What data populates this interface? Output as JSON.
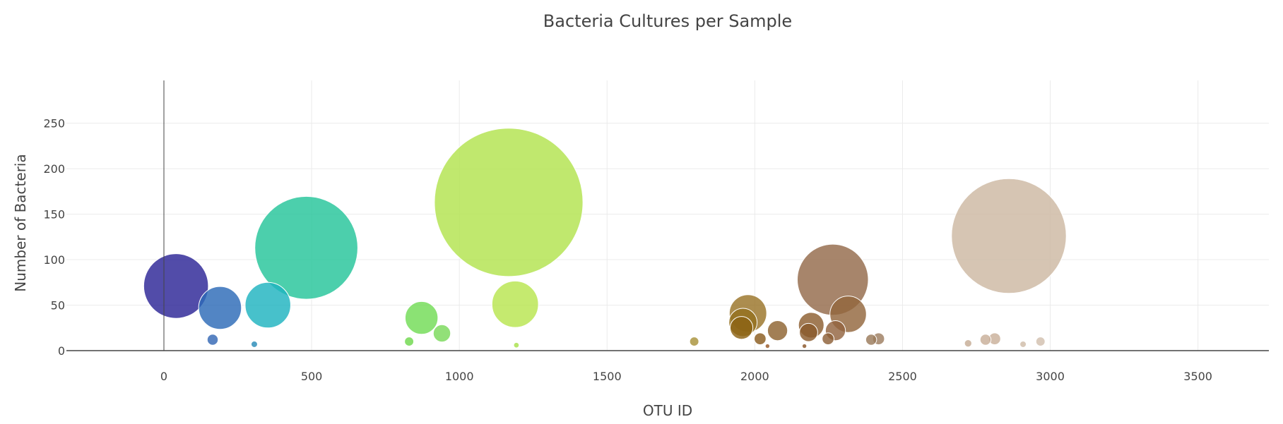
{
  "chart_data": {
    "type": "scatter",
    "title": "Bacteria Cultures per Sample",
    "xlabel": "OTU ID",
    "ylabel": "Number of Bacteria",
    "xlim": [
      -330,
      3740
    ],
    "ylim": [
      0,
      297
    ],
    "x_ticks": [
      0,
      500,
      1000,
      1500,
      2000,
      2500,
      3000,
      3500
    ],
    "y_ticks": [
      0,
      50,
      100,
      150,
      200,
      250
    ],
    "grid": true,
    "legend": "none",
    "series": [
      {
        "marker": "bubble-sized-by-value",
        "points": [
          {
            "x": 41,
            "y": 71,
            "color": "#2c2496"
          },
          {
            "x": 190,
            "y": 47,
            "color": "#2c6ab7"
          },
          {
            "x": 165,
            "y": 12,
            "color": "#3568b4"
          },
          {
            "x": 306,
            "y": 7,
            "color": "#2a8bb7"
          },
          {
            "x": 482,
            "y": 113,
            "color": "#25c59a"
          },
          {
            "x": 352,
            "y": 50,
            "color": "#1fb3bf"
          },
          {
            "x": 872,
            "y": 36,
            "color": "#72dc55"
          },
          {
            "x": 941,
            "y": 19,
            "color": "#7ad95a"
          },
          {
            "x": 830,
            "y": 10,
            "color": "#6fd84d"
          },
          {
            "x": 1167,
            "y": 163,
            "color": "#b2e34e"
          },
          {
            "x": 1189,
            "y": 51,
            "color": "#b8e54f"
          },
          {
            "x": 1193,
            "y": 6,
            "color": "#a8e04a"
          },
          {
            "x": 1795,
            "y": 10,
            "color": "#a8923a"
          },
          {
            "x": 1977,
            "y": 41,
            "color": "#9a7428"
          },
          {
            "x": 1960,
            "y": 31,
            "color": "#94701f"
          },
          {
            "x": 1955,
            "y": 25,
            "color": "#8c6314"
          },
          {
            "x": 2018,
            "y": 13,
            "color": "#8a5c1e"
          },
          {
            "x": 2077,
            "y": 22,
            "color": "#8e6330"
          },
          {
            "x": 2043,
            "y": 5,
            "color": "#9a5a28"
          },
          {
            "x": 2264,
            "y": 78,
            "color": "#946a4a"
          },
          {
            "x": 2316,
            "y": 40,
            "color": "#92673d"
          },
          {
            "x": 2191,
            "y": 28,
            "color": "#8c5e30"
          },
          {
            "x": 2182,
            "y": 20,
            "color": "#8a5a2c"
          },
          {
            "x": 2273,
            "y": 22,
            "color": "#926440"
          },
          {
            "x": 2248,
            "y": 13,
            "color": "#8e6038"
          },
          {
            "x": 2168,
            "y": 5,
            "color": "#8a5528"
          },
          {
            "x": 2394,
            "y": 12,
            "color": "#9a7a5a"
          },
          {
            "x": 2419,
            "y": 13,
            "color": "#9e7e60"
          },
          {
            "x": 2860,
            "y": 126,
            "color": "#cdb8a2"
          },
          {
            "x": 2812,
            "y": 13,
            "color": "#c9b09a"
          },
          {
            "x": 2781,
            "y": 12,
            "color": "#c8ae98"
          },
          {
            "x": 2722,
            "y": 8,
            "color": "#c6ac95"
          },
          {
            "x": 2967,
            "y": 10,
            "color": "#d2c0ae"
          },
          {
            "x": 2908,
            "y": 7,
            "color": "#d0bca8"
          }
        ]
      }
    ]
  }
}
